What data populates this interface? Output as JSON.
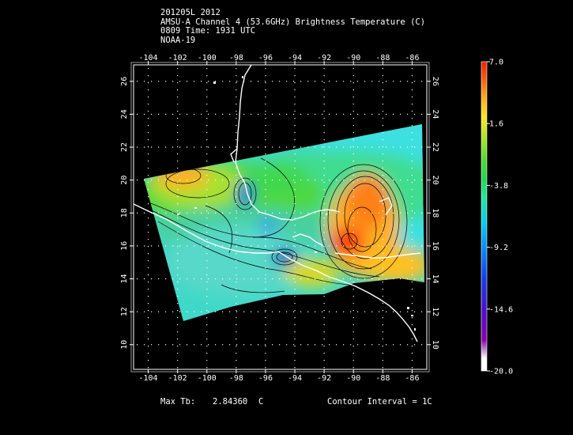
{
  "title": {
    "line1": "201205L 2012",
    "line2": "AMSU-A Channel 4 (53.6GHz) Brightness Temperature (C)",
    "line3": "0809 Time: 1931 UTC",
    "line4": "NOAA-19"
  },
  "map": {
    "lon_ticks": [
      "-104",
      "-102",
      "-100",
      "-98",
      "-96",
      "-94",
      "-92",
      "-90",
      "-88",
      "-86"
    ],
    "lat_ticks": [
      "10",
      "12",
      "14",
      "16",
      "18",
      "20",
      "22",
      "24",
      "26"
    ],
    "lon_range": [
      -105,
      -85
    ],
    "lat_range": [
      8.5,
      27
    ]
  },
  "colorbar": {
    "labels": [
      "7.0",
      "1.6",
      "-3.8",
      "-9.2",
      "-14.6",
      "-20.0"
    ],
    "range": [
      -20.0,
      7.0
    ],
    "colors": [
      "#ffffff",
      "#7a00a8",
      "#3a18d8",
      "#0070ff",
      "#00b8ff",
      "#30e6e6",
      "#28e890",
      "#20d84a",
      "#60e02c",
      "#b0e828",
      "#ffe020",
      "#ffa018",
      "#ff5010",
      "#ff1a00"
    ]
  },
  "footer": {
    "max_tb_label": "Max Tb:",
    "max_tb_value": "2.84360",
    "max_tb_unit": "C",
    "contour_interval": "Contour Interval = 1C"
  }
}
